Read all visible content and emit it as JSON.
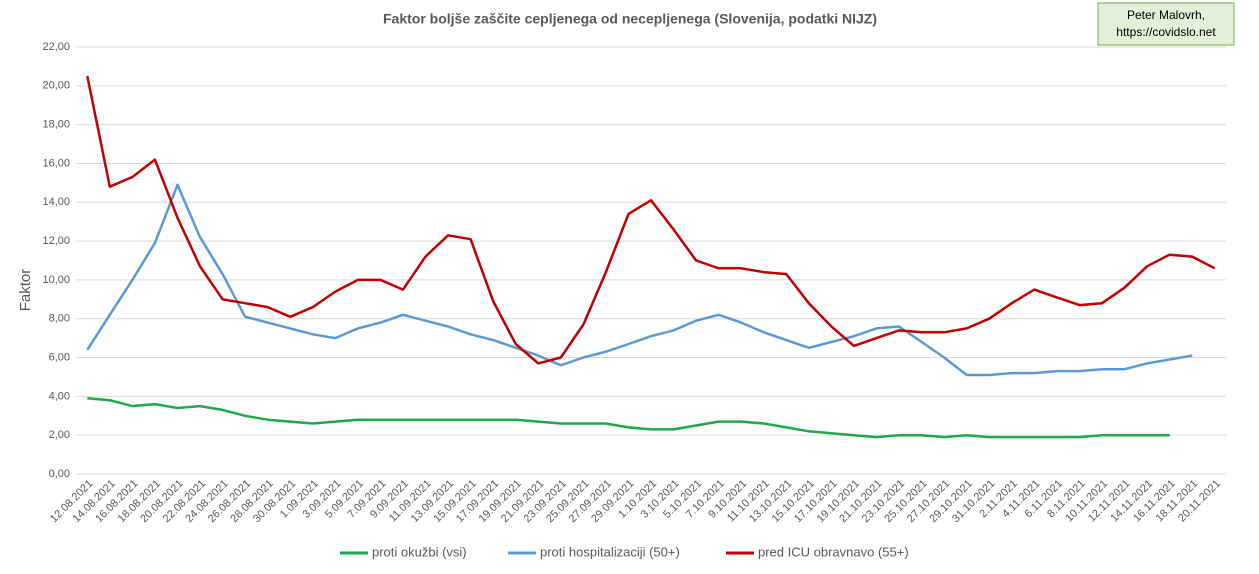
{
  "chart_data": {
    "type": "line",
    "title": "Faktor boljše zaščite cepljenega od necepljenega (Slovenija, podatki NIJZ)",
    "annotation": [
      "Peter Malovrh,",
      "https://covidslo.net"
    ],
    "y_label": "Faktor",
    "categories": [
      "12.08.2021",
      "14.08.2021",
      "16.08.2021",
      "18.08.2021",
      "20.08.2021",
      "22.08.2021",
      "24.08.2021",
      "26.08.2021",
      "28.08.2021",
      "30.08.2021",
      "1.09.2021",
      "3.09.2021",
      "5.09.2021",
      "7.09.2021",
      "9.09.2021",
      "11.09.2021",
      "13.09.2021",
      "15.09.2021",
      "17.09.2021",
      "19.09.2021",
      "21.09.2021",
      "23.09.2021",
      "25.09.2021",
      "27.09.2021",
      "29.09.2021",
      "1.10.2021",
      "3.10.2021",
      "5.10.2021",
      "7.10.2021",
      "9.10.2021",
      "11.10.2021",
      "13.10.2021",
      "15.10.2021",
      "17.10.2021",
      "19.10.2021",
      "21.10.2021",
      "23.10.2021",
      "25.10.2021",
      "27.10.2021",
      "29.10.2021",
      "31.10.2021",
      "2.11.2021",
      "4.11.2021",
      "6.11.2021",
      "8.11.2021",
      "10.11.2021",
      "12.11.2021",
      "14.11.2021",
      "16.11.2021",
      "18.11.2021",
      "20.11.2021"
    ],
    "series": [
      {
        "name": "proti okužbi (vsi)",
        "color": "#1faa4a",
        "values": [
          3.9,
          3.8,
          3.5,
          3.6,
          3.4,
          3.5,
          3.3,
          3.0,
          2.8,
          2.7,
          2.6,
          2.7,
          2.8,
          2.8,
          2.8,
          2.8,
          2.8,
          2.8,
          2.8,
          2.8,
          2.7,
          2.6,
          2.6,
          2.6,
          2.4,
          2.3,
          2.3,
          2.5,
          2.7,
          2.7,
          2.6,
          2.4,
          2.2,
          2.1,
          2.0,
          1.9,
          2.0,
          2.0,
          1.9,
          2.0,
          1.9,
          1.9,
          1.9,
          1.9,
          1.9,
          2.0,
          2.0,
          2.0,
          2.0,
          null,
          null
        ]
      },
      {
        "name": "proti hospitalizaciji (50+)",
        "color": "#5b9bd5",
        "values": [
          6.4,
          8.2,
          10.0,
          11.9,
          14.9,
          12.2,
          10.3,
          8.1,
          7.8,
          7.5,
          7.2,
          7.0,
          7.5,
          7.8,
          8.2,
          7.9,
          7.6,
          7.2,
          6.9,
          6.5,
          6.1,
          5.6,
          6.0,
          6.3,
          6.7,
          7.1,
          7.4,
          7.9,
          8.2,
          7.8,
          7.3,
          6.9,
          6.5,
          6.8,
          7.1,
          7.5,
          7.6,
          6.8,
          6.0,
          5.1,
          5.1,
          5.2,
          5.2,
          5.3,
          5.3,
          5.4,
          5.4,
          5.7,
          5.9,
          6.1,
          null
        ]
      },
      {
        "name": "pred ICU obravnavo (55+)",
        "color": "#c00000",
        "values": [
          20.5,
          14.8,
          15.3,
          16.2,
          13.2,
          10.7,
          9.0,
          8.8,
          8.6,
          8.1,
          8.6,
          9.4,
          10.0,
          10.0,
          9.5,
          11.2,
          12.3,
          12.1,
          8.9,
          6.7,
          5.7,
          6.0,
          7.7,
          10.4,
          13.4,
          14.1,
          12.6,
          11.0,
          10.6,
          10.6,
          10.4,
          10.3,
          8.8,
          7.6,
          6.6,
          7.0,
          7.4,
          7.3,
          7.3,
          7.5,
          8.0,
          8.8,
          9.5,
          9.1,
          8.7,
          8.8,
          9.6,
          10.7,
          11.3,
          11.2,
          10.6
        ]
      }
    ],
    "ylim": [
      0,
      22
    ],
    "yticks": [
      {
        "value": 0,
        "label": "0,00"
      },
      {
        "value": 2,
        "label": "2,00"
      },
      {
        "value": 4,
        "label": "4,00"
      },
      {
        "value": 6,
        "label": "6,00"
      },
      {
        "value": 8,
        "label": "8,00"
      },
      {
        "value": 10,
        "label": "10,00"
      },
      {
        "value": 12,
        "label": "12,00"
      },
      {
        "value": 14,
        "label": "14,00"
      },
      {
        "value": 16,
        "label": "16,00"
      },
      {
        "value": 18,
        "label": "18,00"
      },
      {
        "value": 20,
        "label": "20,00"
      },
      {
        "value": 22,
        "label": "22,00"
      }
    ],
    "grid": true
  }
}
